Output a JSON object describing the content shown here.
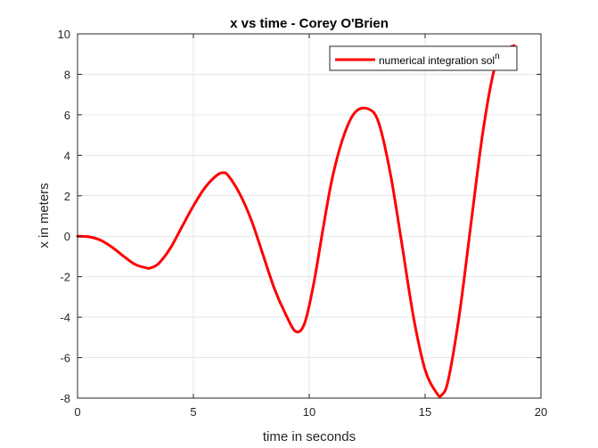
{
  "chart_data": {
    "type": "line",
    "title": "x vs time - Corey O'Brien",
    "xlabel": "time in seconds",
    "ylabel": "x in meters",
    "xlim": [
      0,
      20
    ],
    "ylim": [
      -8,
      10
    ],
    "xticks": [
      0,
      5,
      10,
      15,
      20
    ],
    "yticks": [
      -8,
      -6,
      -4,
      -2,
      0,
      2,
      4,
      6,
      8,
      10
    ],
    "grid": true,
    "legend_position": "top-right",
    "series": [
      {
        "name": "numerical integration sol",
        "name_superscript": "n",
        "color": "#ff0000",
        "x": [
          0,
          0.5,
          1.0,
          1.5,
          2.0,
          2.5,
          3.0,
          3.14,
          3.5,
          4.0,
          4.5,
          5.0,
          5.5,
          6.0,
          6.28,
          6.5,
          7.0,
          7.5,
          8.0,
          8.5,
          9.0,
          9.42,
          9.8,
          10.2,
          10.6,
          11.0,
          11.5,
          12.0,
          12.57,
          13.0,
          13.5,
          14.0,
          14.5,
          15.0,
          15.5,
          15.71,
          16.0,
          16.5,
          17.0,
          17.5,
          18.0,
          18.5,
          18.85
        ],
        "y": [
          0,
          -0.03,
          -0.2,
          -0.55,
          -1.0,
          -1.4,
          -1.57,
          -1.57,
          -1.35,
          -0.6,
          0.45,
          1.5,
          2.4,
          3.0,
          3.14,
          3.0,
          2.1,
          0.8,
          -0.9,
          -2.6,
          -3.9,
          -4.71,
          -4.3,
          -2.3,
          0.4,
          2.9,
          5.0,
          6.15,
          6.28,
          5.6,
          3.1,
          -0.4,
          -4.0,
          -6.6,
          -7.75,
          -7.85,
          -7.1,
          -3.7,
          0.8,
          5.2,
          8.3,
          9.2,
          9.42
        ]
      }
    ]
  }
}
